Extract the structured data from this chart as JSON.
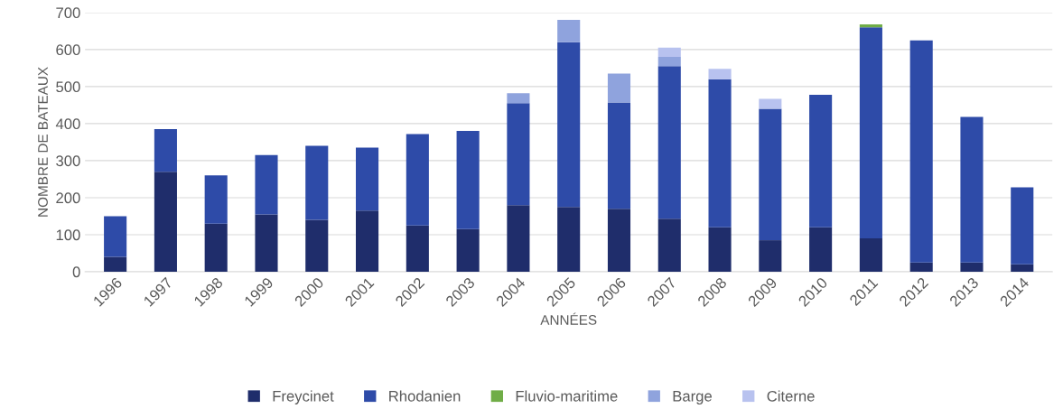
{
  "chart_data": {
    "type": "bar",
    "stacked": true,
    "xlabel": "ANNÉES",
    "ylabel": "NOMBRE DE BATEAUX",
    "categories": [
      "1996",
      "1997",
      "1998",
      "1999",
      "2000",
      "2001",
      "2002",
      "2003",
      "2004",
      "2005",
      "2006",
      "2007",
      "2008",
      "2009",
      "2010",
      "2011",
      "2012",
      "2013",
      "2014"
    ],
    "series": [
      {
        "name": "Freycinet",
        "color": "#1f2d6b",
        "values": [
          40,
          270,
          130,
          155,
          140,
          165,
          125,
          115,
          180,
          175,
          170,
          143,
          120,
          85,
          120,
          90,
          25,
          25,
          20
        ]
      },
      {
        "name": "Rhodanien",
        "color": "#2e4ba8",
        "values": [
          110,
          115,
          130,
          160,
          200,
          170,
          247,
          265,
          275,
          445,
          287,
          412,
          400,
          355,
          358,
          570,
          600,
          393,
          208
        ]
      },
      {
        "name": "Fluvio-maritime",
        "color": "#70ad47",
        "values": [
          0,
          0,
          0,
          0,
          0,
          0,
          0,
          0,
          0,
          0,
          0,
          0,
          0,
          0,
          0,
          8,
          0,
          0,
          0
        ]
      },
      {
        "name": "Barge",
        "color": "#8fa3dd",
        "values": [
          0,
          0,
          0,
          0,
          0,
          0,
          0,
          0,
          27,
          60,
          78,
          25,
          0,
          0,
          0,
          0,
          0,
          0,
          0
        ]
      },
      {
        "name": "Citerne",
        "color": "#b8c2ef",
        "values": [
          0,
          0,
          0,
          0,
          0,
          0,
          0,
          0,
          0,
          0,
          0,
          25,
          28,
          27,
          0,
          0,
          0,
          0,
          0
        ]
      }
    ],
    "ylim": [
      0,
      700
    ],
    "yticks": [
      0,
      100,
      200,
      300,
      400,
      500,
      600,
      700
    ],
    "grid": "y",
    "legend": "bottom"
  }
}
